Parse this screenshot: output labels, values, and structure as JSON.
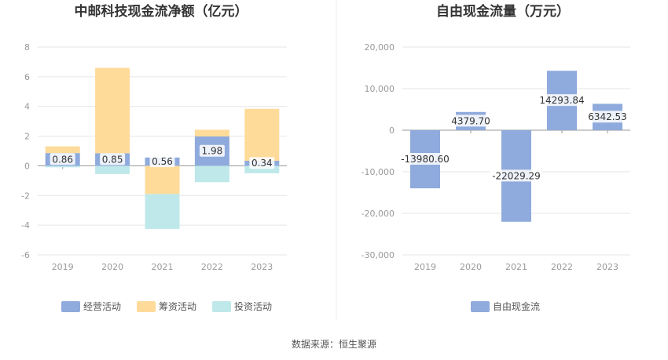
{
  "source_text": "数据来源：恒生聚源",
  "chart_data": [
    {
      "type": "bar",
      "stacked": true,
      "title": "中邮科技现金流净额（亿元）",
      "categories": [
        "2019",
        "2020",
        "2021",
        "2022",
        "2023"
      ],
      "ylim": [
        -6,
        8
      ],
      "yticks": [
        -6,
        -4,
        -2,
        0,
        2,
        4,
        6,
        8
      ],
      "grid": true,
      "legend_position": "bottom",
      "series": [
        {
          "name": "经营活动",
          "color": "#8faadc",
          "values": [
            0.86,
            0.85,
            0.56,
            1.98,
            0.34
          ],
          "labels": [
            "0.86",
            "0.85",
            "0.56",
            "1.98",
            "0.34"
          ]
        },
        {
          "name": "筹资活动",
          "color": "#ffdb9a",
          "values": [
            0.45,
            5.75,
            -1.9,
            0.45,
            3.5
          ]
        },
        {
          "name": "投资活动",
          "color": "#bfe8ea",
          "values": [
            -0.1,
            -0.55,
            -2.35,
            -1.1,
            -0.5
          ]
        }
      ]
    },
    {
      "type": "bar",
      "title": "自由现金流量（万元）",
      "categories": [
        "2019",
        "2020",
        "2021",
        "2022",
        "2023"
      ],
      "ylim": [
        -30000,
        20000
      ],
      "yticks": [
        -30000,
        -20000,
        -10000,
        0,
        10000,
        20000
      ],
      "ytick_labels": [
        "-30,000",
        "-20,000",
        "-10,000",
        "0",
        "10,000",
        "20,000"
      ],
      "grid": true,
      "legend_position": "bottom",
      "series": [
        {
          "name": "自由现金流",
          "color": "#8faadc",
          "values": [
            -13980.6,
            4379.7,
            -22029.29,
            14293.84,
            6342.53
          ],
          "labels": [
            "-13980.60",
            "4379.70",
            "-22029.29",
            "14293.84",
            "6342.53"
          ]
        }
      ]
    }
  ]
}
